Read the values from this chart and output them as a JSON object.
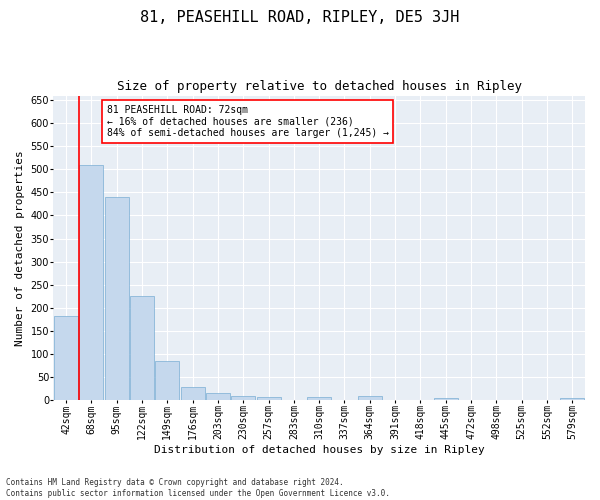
{
  "title": "81, PEASEHILL ROAD, RIPLEY, DE5 3JH",
  "subtitle": "Size of property relative to detached houses in Ripley",
  "xlabel": "Distribution of detached houses by size in Ripley",
  "ylabel": "Number of detached properties",
  "footnote": "Contains HM Land Registry data © Crown copyright and database right 2024.\nContains public sector information licensed under the Open Government Licence v3.0.",
  "bar_labels": [
    "42sqm",
    "68sqm",
    "95sqm",
    "122sqm",
    "149sqm",
    "176sqm",
    "203sqm",
    "230sqm",
    "257sqm",
    "283sqm",
    "310sqm",
    "337sqm",
    "364sqm",
    "391sqm",
    "418sqm",
    "445sqm",
    "472sqm",
    "498sqm",
    "525sqm",
    "552sqm",
    "579sqm"
  ],
  "bar_values": [
    183,
    510,
    440,
    226,
    85,
    28,
    15,
    9,
    7,
    0,
    7,
    0,
    8,
    0,
    0,
    5,
    0,
    0,
    0,
    0,
    5
  ],
  "bar_color": "#c5d8ed",
  "bar_edge_color": "#7aaed4",
  "vline_x": 1,
  "vline_color": "red",
  "annotation_text": "81 PEASEHILL ROAD: 72sqm\n← 16% of detached houses are smaller (236)\n84% of semi-detached houses are larger (1,245) →",
  "annotation_box_color": "white",
  "annotation_box_edge": "red",
  "ylim": [
    0,
    660
  ],
  "yticks": [
    0,
    50,
    100,
    150,
    200,
    250,
    300,
    350,
    400,
    450,
    500,
    550,
    600,
    650
  ],
  "background_color": "#e8eef5",
  "grid_color": "white",
  "title_fontsize": 11,
  "subtitle_fontsize": 9,
  "axis_label_fontsize": 8,
  "tick_fontsize": 7,
  "annotation_fontsize": 7,
  "footnote_fontsize": 5.5
}
